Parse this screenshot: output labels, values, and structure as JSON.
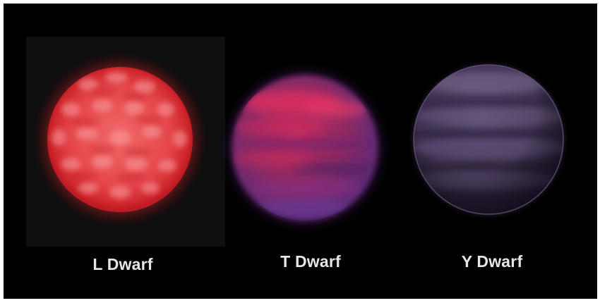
{
  "labels": {
    "l_dwarf": "L Dwarf",
    "t_dwarf": "T Dwarf",
    "y_dwarf": "Y Dwarf"
  },
  "colors": {
    "background": "#000000",
    "l_dwarf": "#e8454b",
    "t_dwarf": "#b8305f",
    "y_dwarf": "#4a3a5e",
    "label_text": "#e6e6e6"
  }
}
